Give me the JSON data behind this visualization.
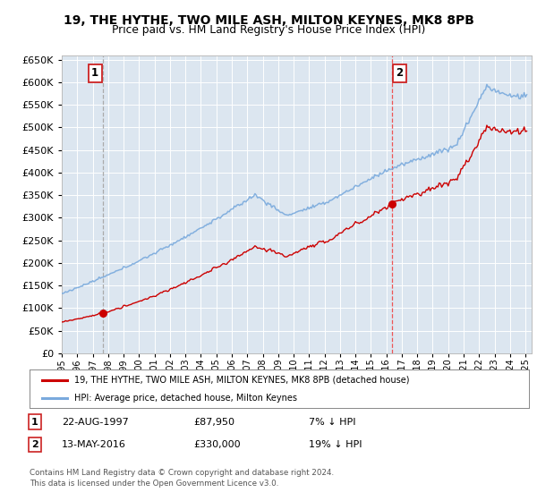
{
  "title_line1": "19, THE HYTHE, TWO MILE ASH, MILTON KEYNES, MK8 8PB",
  "title_line2": "Price paid vs. HM Land Registry's House Price Index (HPI)",
  "legend_label1": "19, THE HYTHE, TWO MILE ASH, MILTON KEYNES, MK8 8PB (detached house)",
  "legend_label2": "HPI: Average price, detached house, Milton Keynes",
  "annotation1_date": "22-AUG-1997",
  "annotation1_price": "£87,950",
  "annotation1_hpi": "7% ↓ HPI",
  "annotation2_date": "13-MAY-2016",
  "annotation2_price": "£330,000",
  "annotation2_hpi": "19% ↓ HPI",
  "footer": "Contains HM Land Registry data © Crown copyright and database right 2024.\nThis data is licensed under the Open Government Licence v3.0.",
  "sale1_year": 1997.64,
  "sale1_price": 87950,
  "sale2_year": 2016.37,
  "sale2_price": 330000,
  "hpi_color": "#7aaadd",
  "price_color": "#cc0000",
  "sale1_vline_color": "#aaaaaa",
  "sale2_vline_color": "#ee5555",
  "plot_bg_color": "#dce6f0",
  "grid_color": "#ffffff",
  "ylim_min": 0,
  "ylim_max": 660000,
  "xlim_min": 1995.0,
  "xlim_max": 2025.4
}
